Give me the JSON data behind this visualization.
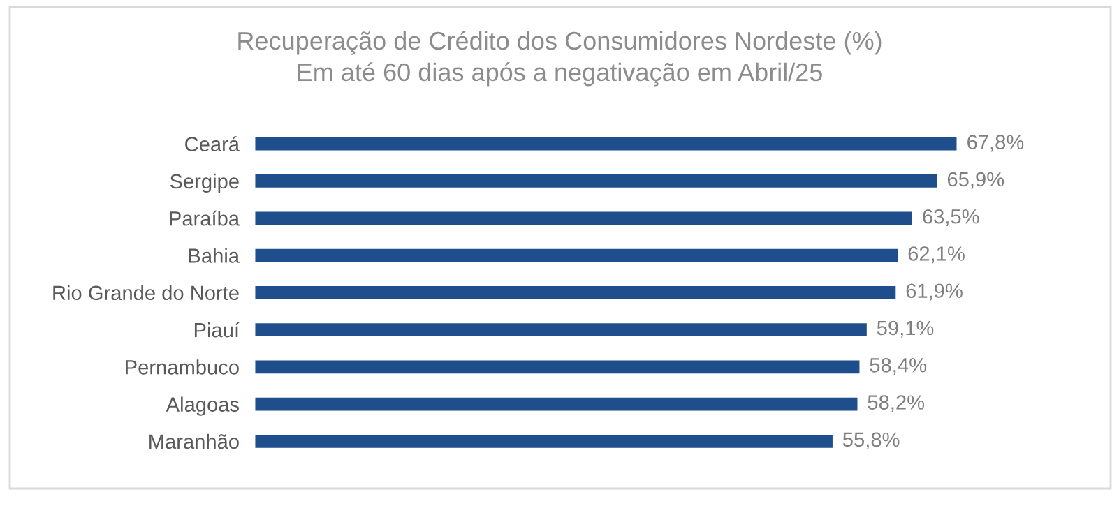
{
  "chart_data": {
    "type": "bar",
    "orientation": "horizontal",
    "title": "Recuperação de Crédito dos Consumidores Nordeste (%)\nEm até 60 dias após a negativação em Abril/25",
    "categories": [
      "Ceará",
      "Sergipe",
      "Paraíba",
      "Bahia",
      "Rio Grande do Norte",
      "Piauí",
      "Pernambuco",
      "Alagoas",
      "Maranhão"
    ],
    "values": [
      67.8,
      65.9,
      63.5,
      62.1,
      61.9,
      59.1,
      58.4,
      58.2,
      55.8
    ],
    "value_labels": [
      "67,8%",
      "65,9%",
      "63,5%",
      "62,1%",
      "61,9%",
      "59,1%",
      "58,4%",
      "58,2%",
      "55,8%"
    ],
    "color": "#1f4e8c",
    "tick_labels": "y",
    "grid": false,
    "legend": false
  }
}
